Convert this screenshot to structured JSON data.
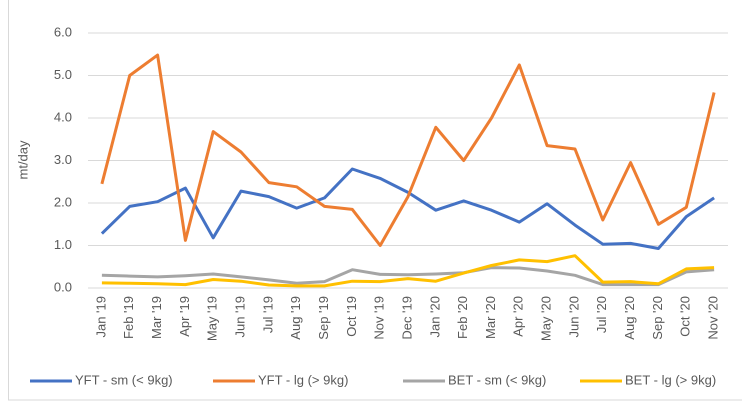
{
  "chart_data": {
    "type": "line",
    "y_label": "mt/day",
    "categories": [
      "Jan '19",
      "Feb '19",
      "Mar '19",
      "Apr '19",
      "May '19",
      "Jun '19",
      "Jul '19",
      "Aug '19",
      "Sep '19",
      "Oct '19",
      "Nov '19",
      "Dec '19",
      "Jan '20",
      "Feb '20",
      "Mar '20",
      "Apr '20",
      "May '20",
      "Jun '20",
      "Jul '20",
      "Aug '20",
      "Sep '20",
      "Oct '20",
      "Nov '20"
    ],
    "series": [
      {
        "name": "YFT - sm (< 9kg)",
        "color": "#4472c4",
        "values": [
          1.28,
          1.92,
          2.03,
          2.35,
          1.18,
          2.28,
          2.15,
          1.88,
          2.12,
          2.8,
          2.58,
          2.25,
          1.83,
          2.05,
          1.83,
          1.55,
          1.98,
          1.48,
          1.03,
          1.05,
          0.93,
          1.68,
          2.12
        ]
      },
      {
        "name": "YFT - lg (> 9kg)",
        "color": "#ed7d31",
        "values": [
          2.45,
          5.0,
          5.48,
          1.12,
          3.68,
          3.2,
          2.48,
          2.38,
          1.92,
          1.85,
          1.0,
          2.15,
          3.78,
          3.0,
          4.0,
          5.25,
          3.35,
          3.27,
          1.6,
          2.95,
          1.5,
          1.9,
          4.6
        ]
      },
      {
        "name": "BET - sm (< 9kg)",
        "color": "#a5a5a5",
        "values": [
          0.3,
          0.28,
          0.26,
          0.29,
          0.33,
          0.26,
          0.19,
          0.11,
          0.15,
          0.43,
          0.32,
          0.31,
          0.33,
          0.36,
          0.48,
          0.47,
          0.4,
          0.3,
          0.08,
          0.08,
          0.08,
          0.38,
          0.43
        ]
      },
      {
        "name": "BET - lg (> 9kg)",
        "color": "#ffc000",
        "values": [
          0.12,
          0.11,
          0.1,
          0.08,
          0.2,
          0.16,
          0.07,
          0.05,
          0.05,
          0.16,
          0.15,
          0.22,
          0.16,
          0.35,
          0.53,
          0.66,
          0.62,
          0.76,
          0.14,
          0.15,
          0.1,
          0.45,
          0.48
        ]
      }
    ],
    "ylim": [
      0,
      6
    ],
    "yticks": [
      {
        "value": 0,
        "label": "0.0"
      },
      {
        "value": 1,
        "label": "1.0"
      },
      {
        "value": 2,
        "label": "2.0"
      },
      {
        "value": 3,
        "label": "3.0"
      },
      {
        "value": 4,
        "label": "4.0"
      },
      {
        "value": 5,
        "label": "5.0"
      },
      {
        "value": 6,
        "label": "6.0"
      }
    ],
    "grid": true,
    "legend": "bottom"
  }
}
